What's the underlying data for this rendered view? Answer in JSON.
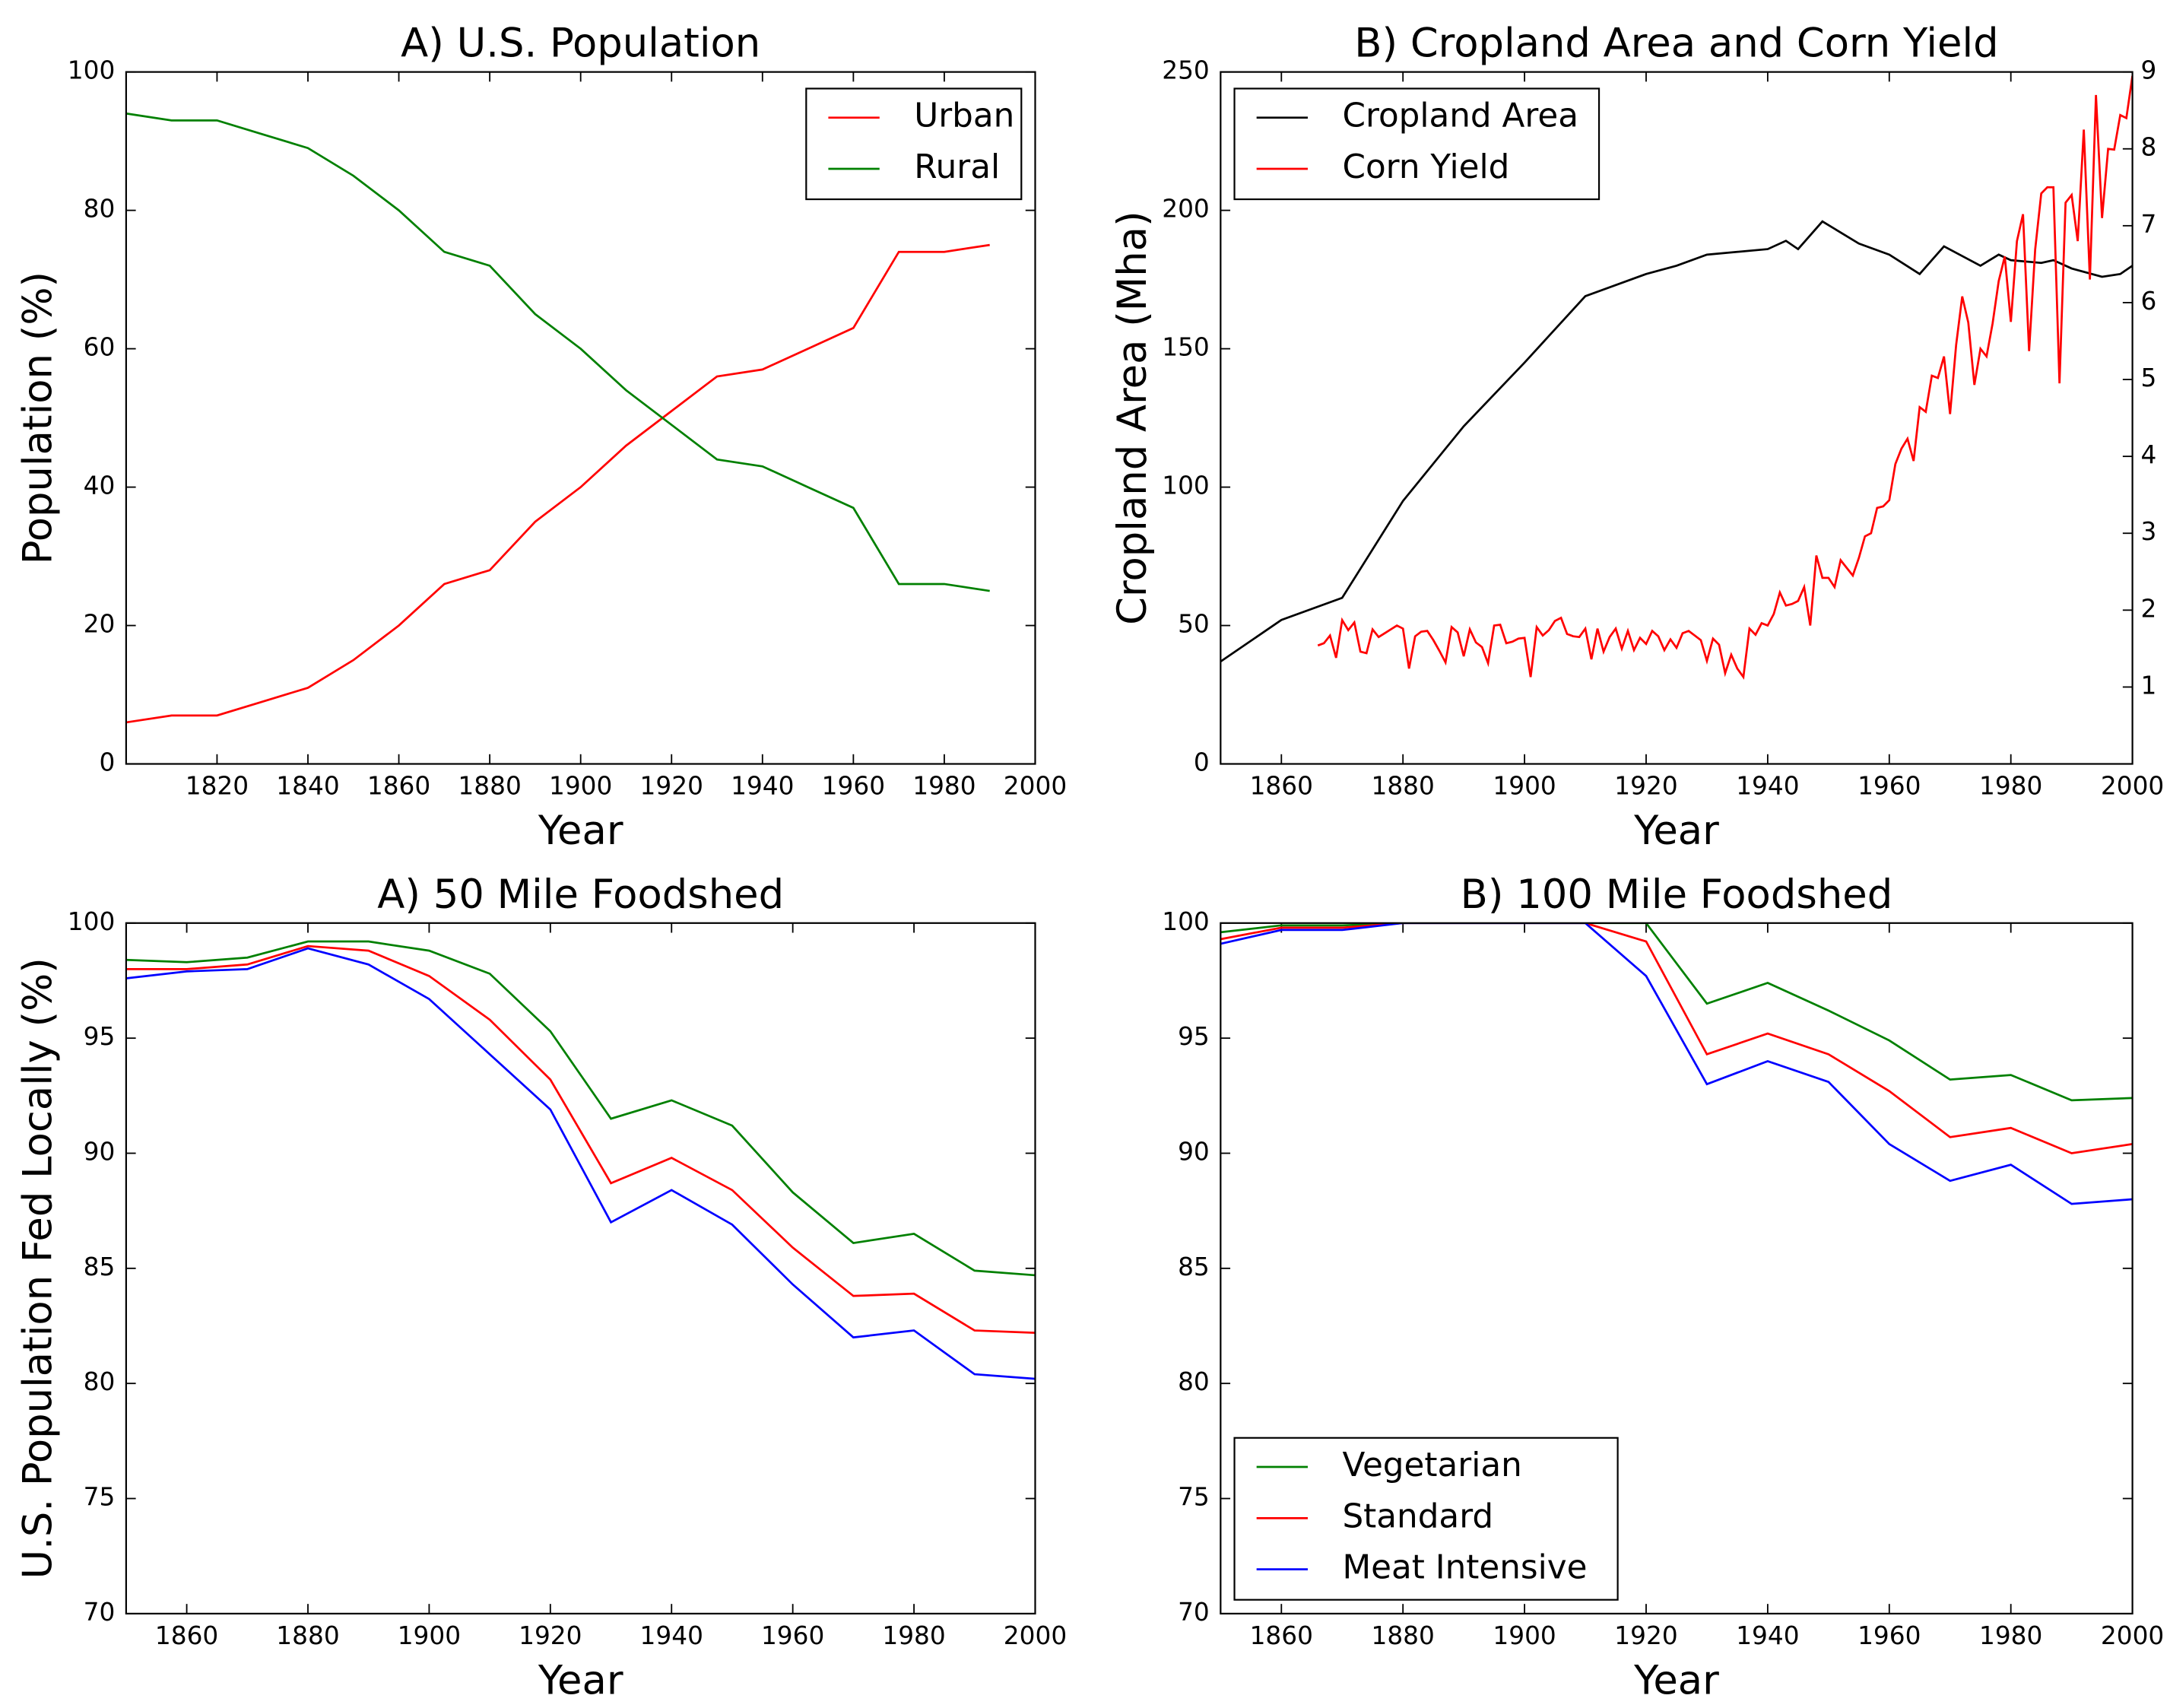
{
  "chart_data": [
    {
      "type": "line",
      "title": "A) U.S. Population",
      "xlabel": "Year",
      "ylabel": "Population (%)",
      "x": [
        1800,
        1810,
        1820,
        1830,
        1840,
        1850,
        1860,
        1870,
        1880,
        1890,
        1900,
        1910,
        1920,
        1930,
        1940,
        1950,
        1960,
        1970,
        1980,
        1990
      ],
      "series": [
        {
          "name": "Urban",
          "color": "#ff0000",
          "values": [
            6,
            7,
            7,
            9,
            11,
            15,
            20,
            26,
            28,
            35,
            40,
            46,
            51,
            56,
            57,
            60,
            63,
            74,
            74,
            75
          ]
        },
        {
          "name": "Rural",
          "color": "#008000",
          "values": [
            94,
            93,
            93,
            91,
            89,
            85,
            80,
            74,
            72,
            65,
            60,
            54,
            49,
            44,
            43,
            40,
            37,
            26,
            26,
            25
          ]
        }
      ],
      "xlim": [
        1800,
        2000
      ],
      "xticks": [
        1820,
        1840,
        1860,
        1880,
        1900,
        1920,
        1940,
        1960,
        1980,
        2000
      ],
      "ylim": [
        0,
        100
      ],
      "yticks": [
        0,
        20,
        40,
        60,
        80,
        100
      ],
      "legend": "upper right",
      "grid": false
    },
    {
      "type": "line",
      "title": "B) Cropland Area and Corn Yield",
      "xlabel": "Year",
      "ylabel": "Cropland Area (Mha)",
      "series": [
        {
          "name": "Cropland Area",
          "color": "#000000",
          "x": [
            1850,
            1860,
            1870,
            1880,
            1890,
            1900,
            1910,
            1920,
            1925,
            1930,
            1940,
            1943,
            1945,
            1949,
            1955,
            1960,
            1965,
            1969,
            1975,
            1978,
            1980,
            1985,
            1987,
            1990,
            1995,
            1998,
            2000
          ],
          "values": [
            37,
            52,
            60,
            95,
            122,
            145,
            169,
            177,
            180,
            184,
            186,
            189,
            186,
            196,
            188,
            184,
            177,
            187,
            180,
            184,
            182,
            181,
            182,
            179,
            176,
            177,
            180
          ]
        },
        {
          "name": "Corn Yield",
          "color": "#ff0000",
          "axis": "y2",
          "x": [
            1866,
            1867,
            1868,
            1869,
            1870,
            1871,
            1872,
            1873,
            1874,
            1875,
            1876,
            1877,
            1878,
            1879,
            1880,
            1881,
            1882,
            1883,
            1884,
            1885,
            1886,
            1887,
            1888,
            1889,
            1890,
            1891,
            1892,
            1893,
            1894,
            1895,
            1896,
            1897,
            1898,
            1899,
            1900,
            1901,
            1902,
            1903,
            1904,
            1905,
            1906,
            1907,
            1908,
            1909,
            1910,
            1911,
            1912,
            1913,
            1914,
            1915,
            1916,
            1917,
            1918,
            1919,
            1920,
            1921,
            1922,
            1923,
            1924,
            1925,
            1926,
            1927,
            1928,
            1929,
            1930,
            1931,
            1932,
            1933,
            1934,
            1935,
            1936,
            1937,
            1938,
            1939,
            1940,
            1941,
            1942,
            1943,
            1944,
            1945,
            1946,
            1947,
            1948,
            1949,
            1950,
            1951,
            1952,
            1953,
            1954,
            1955,
            1956,
            1957,
            1958,
            1959,
            1960,
            1961,
            1962,
            1963,
            1964,
            1965,
            1966,
            1967,
            1968,
            1969,
            1970,
            1971,
            1972,
            1973,
            1974,
            1975,
            1976,
            1977,
            1978,
            1979,
            1980,
            1981,
            1982,
            1983,
            1984,
            1985,
            1986,
            1987,
            1988,
            1989,
            1990,
            1991,
            1992,
            1993,
            1994,
            1995,
            1996,
            1997,
            1998,
            1999,
            2000
          ],
          "values": [
            1.54,
            1.57,
            1.67,
            1.38,
            1.87,
            1.74,
            1.84,
            1.46,
            1.44,
            1.75,
            1.65,
            1.7,
            1.75,
            1.8,
            1.76,
            1.24,
            1.66,
            1.72,
            1.73,
            1.61,
            1.47,
            1.32,
            1.78,
            1.71,
            1.4,
            1.75,
            1.58,
            1.52,
            1.31,
            1.8,
            1.81,
            1.57,
            1.59,
            1.63,
            1.64,
            1.13,
            1.78,
            1.67,
            1.74,
            1.86,
            1.9,
            1.69,
            1.66,
            1.65,
            1.76,
            1.36,
            1.76,
            1.46,
            1.65,
            1.76,
            1.5,
            1.73,
            1.48,
            1.64,
            1.56,
            1.73,
            1.66,
            1.48,
            1.62,
            1.51,
            1.7,
            1.73,
            1.67,
            1.61,
            1.34,
            1.63,
            1.55,
            1.18,
            1.42,
            1.24,
            1.13,
            1.76,
            1.68,
            1.83,
            1.8,
            1.95,
            2.23,
            2.06,
            2.08,
            2.12,
            2.3,
            1.8,
            2.71,
            2.42,
            2.42,
            2.3,
            2.65,
            2.55,
            2.45,
            2.68,
            2.96,
            3.0,
            3.33,
            3.35,
            3.43,
            3.9,
            4.1,
            4.23,
            3.94,
            4.64,
            4.58,
            5.05,
            5.02,
            5.3,
            4.55,
            5.45,
            6.08,
            5.74,
            4.93,
            5.4,
            5.3,
            5.73,
            6.28,
            6.6,
            5.75,
            6.8,
            7.15,
            5.37,
            6.69,
            7.42,
            7.5,
            7.5,
            4.95,
            7.3,
            7.4,
            6.8,
            8.25,
            6.3,
            8.7,
            7.1,
            8.0,
            7.99,
            8.44,
            8.4,
            8.95
          ]
        }
      ],
      "xlim": [
        1850,
        2000
      ],
      "xticks": [
        1860,
        1880,
        1900,
        1920,
        1940,
        1960,
        1980,
        2000
      ],
      "ylim": [
        0,
        250
      ],
      "yticks": [
        0,
        50,
        100,
        150,
        200,
        250
      ],
      "y2lim": [
        0,
        9
      ],
      "y2ticks": [
        1,
        2,
        3,
        4,
        5,
        6,
        7,
        8,
        9
      ],
      "legend": "upper left",
      "grid": false
    },
    {
      "type": "line",
      "title": "A) 50 Mile Foodshed",
      "xlabel": "Year",
      "ylabel": "U.S. Population Fed Locally (%)",
      "x": [
        1850,
        1860,
        1870,
        1880,
        1890,
        1900,
        1910,
        1920,
        1930,
        1940,
        1950,
        1960,
        1970,
        1980,
        1990,
        2000
      ],
      "series": [
        {
          "name": "Vegetarian",
          "color": "#008000",
          "values": [
            98.4,
            98.3,
            98.5,
            99.2,
            99.2,
            98.8,
            97.8,
            95.3,
            91.5,
            92.3,
            91.2,
            88.3,
            86.1,
            86.5,
            84.9,
            84.7
          ]
        },
        {
          "name": "Standard",
          "color": "#ff0000",
          "values": [
            98.0,
            98.0,
            98.2,
            99.0,
            98.8,
            97.7,
            95.8,
            93.2,
            88.7,
            89.8,
            88.4,
            85.9,
            83.8,
            83.9,
            82.3,
            82.2
          ]
        },
        {
          "name": "Meat Intensive",
          "color": "#0000ff",
          "values": [
            97.6,
            97.9,
            98.0,
            98.9,
            98.2,
            96.7,
            94.3,
            91.9,
            87.0,
            88.4,
            86.9,
            84.3,
            82.0,
            82.3,
            80.4,
            80.2
          ]
        }
      ],
      "xlim": [
        1850,
        2000
      ],
      "xticks": [
        1860,
        1880,
        1900,
        1920,
        1940,
        1960,
        1980,
        2000
      ],
      "ylim": [
        70,
        100
      ],
      "yticks": [
        70,
        75,
        80,
        85,
        90,
        95,
        100
      ],
      "grid": false
    },
    {
      "type": "line",
      "title": "B) 100 Mile Foodshed",
      "xlabel": "Year",
      "x": [
        1850,
        1860,
        1870,
        1880,
        1890,
        1900,
        1910,
        1920,
        1930,
        1940,
        1950,
        1960,
        1970,
        1980,
        1990,
        2000
      ],
      "series": [
        {
          "name": "Vegetarian",
          "color": "#008000",
          "values": [
            99.6,
            99.9,
            99.9,
            100,
            100,
            100,
            100,
            100,
            96.5,
            97.4,
            96.2,
            94.9,
            93.2,
            93.4,
            92.3,
            92.4
          ]
        },
        {
          "name": "Standard",
          "color": "#ff0000",
          "values": [
            99.3,
            99.8,
            99.8,
            100,
            100,
            100,
            100,
            99.2,
            94.3,
            95.2,
            94.3,
            92.7,
            90.7,
            91.1,
            90.0,
            90.4
          ]
        },
        {
          "name": "Meat Intensive",
          "color": "#0000ff",
          "values": [
            99.1,
            99.7,
            99.7,
            100,
            100,
            100,
            100,
            97.7,
            93.0,
            94.0,
            93.1,
            90.4,
            88.8,
            89.5,
            87.8,
            88.0
          ]
        }
      ],
      "xlim": [
        1850,
        2000
      ],
      "xticks": [
        1860,
        1880,
        1900,
        1920,
        1940,
        1960,
        1980,
        2000
      ],
      "ylim": [
        70,
        100
      ],
      "yticks": [
        70,
        75,
        80,
        85,
        90,
        95,
        100
      ],
      "legend": "lower left",
      "grid": false
    }
  ]
}
